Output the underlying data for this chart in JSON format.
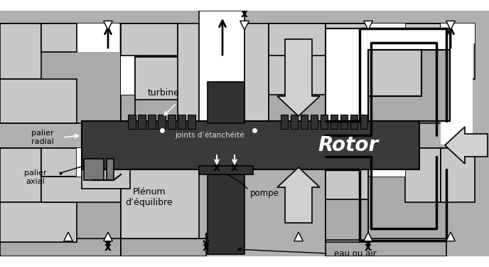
{
  "bg": "#b0b0b0",
  "lg": "#c8c8c8",
  "mlg": "#aaaaaa",
  "dg": "#787878",
  "vdg": "#323232",
  "rotor_c": "#3a3a3a",
  "blk": "#000000",
  "wh": "#ffffff",
  "arrow_gray": "#d0d0d0",
  "rotor_text": "Rotor",
  "labels": {
    "turbine": "turbine",
    "palier_radial": "palier\nradial",
    "palier_axial": "palier\naxial",
    "joints": "joints d’étanchéité",
    "plenum": "Plénum\nd’équilibre",
    "pompe": "pompe",
    "eau_ou_air": "eau ou air"
  },
  "fig_w": 6.88,
  "fig_h": 3.75,
  "dpi": 100
}
